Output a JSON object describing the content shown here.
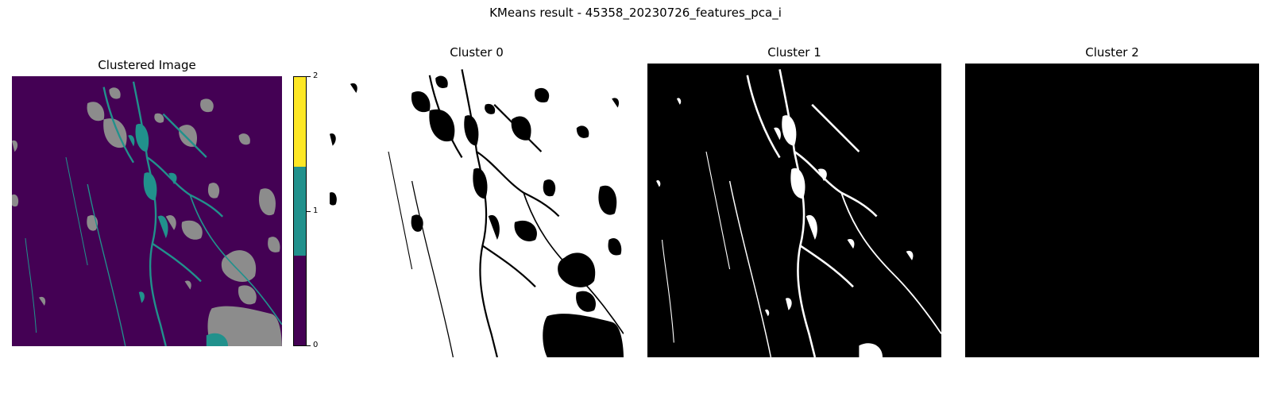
{
  "suptitle": "KMeans result - 45358_20230726_features_pca_i",
  "panels": {
    "clustered": {
      "title": "Clustered Image"
    },
    "cluster0": {
      "title": "Cluster 0"
    },
    "cluster1": {
      "title": "Cluster 1"
    },
    "cluster2": {
      "title": "Cluster 2"
    }
  },
  "colorbar": {
    "ticks": [
      "0",
      "1",
      "2"
    ],
    "colors": {
      "c0": "#440154",
      "c1": "#21918c",
      "c2": "#fde725"
    }
  },
  "colors": {
    "cluster0_class": "#440154",
    "cluster1_class": "#21918c",
    "nodata": "#8c8c8c",
    "mask_on": "#ffffff",
    "mask_off": "#000000"
  }
}
